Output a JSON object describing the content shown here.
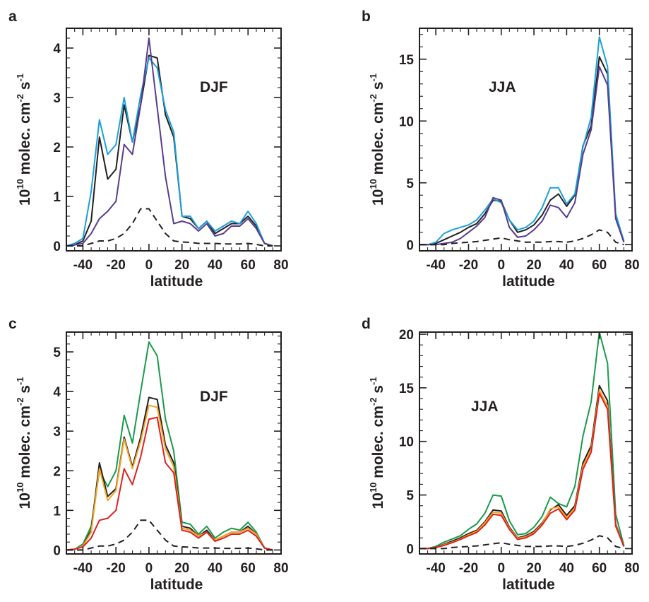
{
  "chart_data": [
    {
      "type": "line",
      "panel": "a",
      "annotation": "DJF",
      "xlabel": "latitude",
      "ylabel_main": "10",
      "ylabel_exp": "10",
      "ylabel_rest": " molec. cm",
      "ylabel_exp2": "-2",
      "ylabel_s": " s",
      "ylabel_exp3": "-1",
      "xlim": [
        -50,
        80
      ],
      "ylim": [
        -0.1,
        4.4
      ],
      "xticks": [
        -40,
        -20,
        0,
        20,
        40,
        60,
        80
      ],
      "xtick_labels": [
        "-40",
        "-20",
        "0",
        "20",
        "40",
        "60",
        "80"
      ],
      "yticks": [
        0,
        1,
        2,
        3,
        4
      ],
      "ytick_labels": [
        "0",
        "1",
        "2",
        "3",
        "4"
      ],
      "x": [
        -50,
        -45,
        -40,
        -35,
        -30,
        -25,
        -20,
        -15,
        -10,
        -5,
        0,
        5,
        10,
        15,
        20,
        25,
        30,
        35,
        40,
        45,
        50,
        55,
        60,
        65,
        70,
        75
      ],
      "series": [
        {
          "color": "#231f20",
          "dash": false,
          "values": [
            0,
            0.02,
            0.1,
            0.5,
            2.2,
            1.35,
            1.55,
            2.85,
            2.1,
            2.85,
            3.85,
            3.8,
            2.65,
            2.2,
            0.6,
            0.55,
            0.35,
            0.5,
            0.25,
            0.35,
            0.45,
            0.45,
            0.6,
            0.4,
            0.05,
            0
          ]
        },
        {
          "color": "#1ba1d9",
          "dash": false,
          "values": [
            0,
            0.05,
            0.15,
            1.1,
            2.55,
            1.85,
            2.05,
            3.0,
            2.1,
            3.05,
            3.8,
            3.6,
            2.75,
            2.3,
            0.6,
            0.6,
            0.35,
            0.5,
            0.3,
            0.4,
            0.5,
            0.45,
            0.7,
            0.45,
            0.05,
            0
          ]
        },
        {
          "color": "#5a3b8d",
          "dash": false,
          "values": [
            0,
            0.02,
            0.05,
            0.25,
            0.55,
            0.7,
            0.9,
            2.05,
            1.85,
            2.85,
            4.2,
            2.8,
            1.4,
            0.45,
            0.5,
            0.45,
            0.3,
            0.45,
            0.2,
            0.25,
            0.4,
            0.4,
            0.55,
            0.35,
            0.05,
            0
          ]
        },
        {
          "color": "#231f20",
          "dash": true,
          "values": [
            0,
            0,
            0,
            0.05,
            0.1,
            0.1,
            0.15,
            0.25,
            0.45,
            0.75,
            0.75,
            0.5,
            0.25,
            0.1,
            0.08,
            0.07,
            0.05,
            0.05,
            0.05,
            0.04,
            0.04,
            0.04,
            0.05,
            0.03,
            0,
            0
          ]
        }
      ]
    },
    {
      "type": "line",
      "panel": "b",
      "annotation": "JJA",
      "xlabel": "latitude",
      "ylabel_main": "10",
      "ylabel_exp": "10",
      "ylabel_rest": " molec. cm",
      "ylabel_exp2": "-2",
      "ylabel_s": " s",
      "ylabel_exp3": "-1",
      "xlim": [
        -50,
        80
      ],
      "ylim": [
        -0.5,
        17.5
      ],
      "xticks": [
        -40,
        -20,
        0,
        20,
        40,
        60,
        80
      ],
      "xtick_labels": [
        "-40",
        "-20",
        "0",
        "20",
        "40",
        "60",
        "80"
      ],
      "yticks": [
        0,
        5,
        10,
        15
      ],
      "ytick_labels": [
        "0",
        "5",
        "10",
        "15"
      ],
      "x": [
        -50,
        -45,
        -40,
        -35,
        -30,
        -25,
        -20,
        -15,
        -10,
        -5,
        0,
        5,
        10,
        15,
        20,
        25,
        30,
        35,
        40,
        45,
        50,
        55,
        60,
        65,
        70,
        75
      ],
      "series": [
        {
          "color": "#231f20",
          "dash": false,
          "values": [
            0,
            0,
            0.1,
            0.4,
            0.7,
            1.0,
            1.4,
            1.7,
            2.5,
            3.6,
            3.5,
            2.0,
            1.0,
            1.2,
            1.6,
            2.4,
            3.6,
            4.1,
            3.1,
            4.0,
            8.0,
            9.6,
            15.2,
            13.8,
            2.3,
            0.2
          ]
        },
        {
          "color": "#1ba1d9",
          "dash": false,
          "values": [
            0,
            0,
            0.2,
            0.9,
            1.2,
            1.4,
            1.6,
            2.0,
            2.8,
            3.7,
            3.4,
            2.0,
            1.2,
            1.4,
            1.9,
            3.0,
            4.6,
            4.6,
            3.3,
            4.1,
            7.9,
            10.3,
            16.8,
            14.4,
            2.5,
            0.3
          ]
        },
        {
          "color": "#5a3b8d",
          "dash": false,
          "values": [
            0,
            0,
            0,
            0.1,
            0.2,
            0.5,
            1.0,
            1.5,
            2.2,
            3.8,
            3.6,
            1.4,
            0.6,
            0.7,
            1.2,
            1.9,
            3.2,
            3.0,
            2.2,
            3.4,
            7.3,
            9.3,
            14.4,
            12.9,
            2.1,
            0.2
          ]
        },
        {
          "color": "#231f20",
          "dash": true,
          "values": [
            0,
            0,
            0,
            0,
            0.1,
            0.15,
            0.2,
            0.25,
            0.35,
            0.45,
            0.55,
            0.4,
            0.3,
            0.2,
            0.2,
            0.2,
            0.25,
            0.25,
            0.2,
            0.3,
            0.5,
            0.8,
            1.2,
            1.0,
            0.2,
            0
          ]
        }
      ]
    },
    {
      "type": "line",
      "panel": "c",
      "annotation": "DJF",
      "xlabel": "latitude",
      "ylabel_main": "10",
      "ylabel_exp": "10",
      "ylabel_rest": " molec. cm",
      "ylabel_exp2": "-2",
      "ylabel_s": " s",
      "ylabel_exp3": "-1",
      "xlim": [
        -50,
        80
      ],
      "ylim": [
        -0.1,
        5.5
      ],
      "xticks": [
        -40,
        -20,
        0,
        20,
        40,
        60,
        80
      ],
      "xtick_labels": [
        "-40",
        "-20",
        "0",
        "20",
        "40",
        "60",
        "80"
      ],
      "yticks": [
        0,
        1,
        2,
        3,
        4,
        5
      ],
      "ytick_labels": [
        "0",
        "1",
        "2",
        "3",
        "4",
        "5"
      ],
      "x": [
        -50,
        -45,
        -40,
        -35,
        -30,
        -25,
        -20,
        -15,
        -10,
        -5,
        0,
        5,
        10,
        15,
        20,
        25,
        30,
        35,
        40,
        45,
        50,
        55,
        60,
        65,
        70,
        75
      ],
      "series": [
        {
          "color": "#1a9a4b",
          "dash": false,
          "values": [
            0,
            0.02,
            0.15,
            0.6,
            2.0,
            1.6,
            2.0,
            3.4,
            2.7,
            4.0,
            5.25,
            4.9,
            3.3,
            2.5,
            0.7,
            0.65,
            0.4,
            0.6,
            0.3,
            0.45,
            0.55,
            0.5,
            0.7,
            0.45,
            0.05,
            0
          ]
        },
        {
          "color": "#231f20",
          "dash": false,
          "values": [
            0,
            0.02,
            0.1,
            0.5,
            2.2,
            1.35,
            1.55,
            2.85,
            2.1,
            2.85,
            3.85,
            3.8,
            2.65,
            2.2,
            0.6,
            0.55,
            0.35,
            0.5,
            0.25,
            0.35,
            0.45,
            0.45,
            0.6,
            0.4,
            0.05,
            0
          ]
        },
        {
          "color": "#f5a623",
          "dash": false,
          "values": [
            0,
            0.02,
            0.1,
            0.45,
            2.05,
            1.25,
            1.5,
            2.8,
            2.05,
            2.75,
            3.65,
            3.6,
            2.55,
            2.1,
            0.55,
            0.5,
            0.35,
            0.45,
            0.25,
            0.35,
            0.45,
            0.45,
            0.55,
            0.4,
            0.05,
            0
          ]
        },
        {
          "color": "#e02020",
          "dash": false,
          "values": [
            0,
            0.02,
            0.08,
            0.3,
            0.75,
            0.8,
            1.0,
            2.05,
            1.65,
            2.35,
            3.3,
            3.35,
            2.2,
            1.95,
            0.5,
            0.45,
            0.3,
            0.45,
            0.22,
            0.3,
            0.4,
            0.4,
            0.5,
            0.35,
            0.05,
            0
          ]
        },
        {
          "color": "#231f20",
          "dash": true,
          "values": [
            0,
            0,
            0,
            0.05,
            0.1,
            0.1,
            0.15,
            0.25,
            0.45,
            0.75,
            0.75,
            0.5,
            0.25,
            0.1,
            0.08,
            0.07,
            0.05,
            0.05,
            0.05,
            0.04,
            0.04,
            0.04,
            0.05,
            0.03,
            0,
            0
          ]
        }
      ]
    },
    {
      "type": "line",
      "panel": "d",
      "annotation": "JJA",
      "xlabel": "latitude",
      "ylabel_main": "10",
      "ylabel_exp": "10",
      "ylabel_rest": " molec. cm",
      "ylabel_exp2": "-2",
      "ylabel_s": " s",
      "ylabel_exp3": "-1",
      "xlim": [
        -50,
        80
      ],
      "ylim": [
        -0.5,
        20.2
      ],
      "xticks": [
        -40,
        -20,
        0,
        20,
        40,
        60,
        80
      ],
      "xtick_labels": [
        "-40",
        "-20",
        "0",
        "20",
        "40",
        "60",
        "80"
      ],
      "yticks": [
        0,
        5,
        10,
        15,
        20
      ],
      "ytick_labels": [
        "0",
        "5",
        "10",
        "15",
        "20"
      ],
      "x": [
        -50,
        -45,
        -40,
        -35,
        -30,
        -25,
        -20,
        -15,
        -10,
        -5,
        0,
        5,
        10,
        15,
        20,
        25,
        30,
        35,
        40,
        45,
        50,
        55,
        60,
        65,
        70,
        75
      ],
      "series": [
        {
          "color": "#1a9a4b",
          "dash": false,
          "values": [
            0,
            0,
            0.2,
            0.6,
            0.9,
            1.2,
            1.8,
            2.3,
            3.3,
            5.0,
            4.9,
            2.6,
            1.3,
            1.4,
            2.0,
            3.0,
            4.8,
            4.2,
            3.9,
            5.8,
            10.5,
            13.7,
            20.2,
            17.3,
            3.2,
            0.3
          ]
        },
        {
          "color": "#231f20",
          "dash": false,
          "values": [
            0,
            0,
            0.1,
            0.4,
            0.7,
            1.0,
            1.4,
            1.7,
            2.5,
            3.6,
            3.5,
            2.0,
            1.0,
            1.2,
            1.6,
            2.4,
            3.6,
            4.1,
            3.1,
            4.0,
            8.0,
            9.6,
            15.2,
            13.8,
            2.3,
            0.2
          ]
        },
        {
          "color": "#f5a623",
          "dash": false,
          "values": [
            0,
            0,
            0.1,
            0.35,
            0.6,
            0.9,
            1.3,
            1.6,
            2.4,
            3.4,
            3.3,
            1.9,
            0.95,
            1.1,
            1.5,
            2.3,
            3.7,
            3.9,
            2.9,
            3.8,
            7.7,
            9.3,
            14.8,
            13.3,
            2.2,
            0.2
          ]
        },
        {
          "color": "#e02020",
          "dash": false,
          "values": [
            0,
            0,
            0.1,
            0.3,
            0.55,
            0.85,
            1.2,
            1.5,
            2.2,
            3.2,
            3.1,
            1.8,
            0.85,
            1.0,
            1.4,
            2.2,
            3.3,
            3.7,
            2.7,
            3.6,
            7.4,
            9.0,
            14.5,
            13.0,
            2.1,
            0.2
          ]
        },
        {
          "color": "#231f20",
          "dash": true,
          "values": [
            0,
            0,
            0,
            0,
            0.1,
            0.15,
            0.2,
            0.25,
            0.35,
            0.45,
            0.55,
            0.4,
            0.3,
            0.2,
            0.2,
            0.2,
            0.25,
            0.25,
            0.2,
            0.3,
            0.5,
            0.8,
            1.2,
            1.0,
            0.2,
            0
          ]
        }
      ]
    }
  ]
}
